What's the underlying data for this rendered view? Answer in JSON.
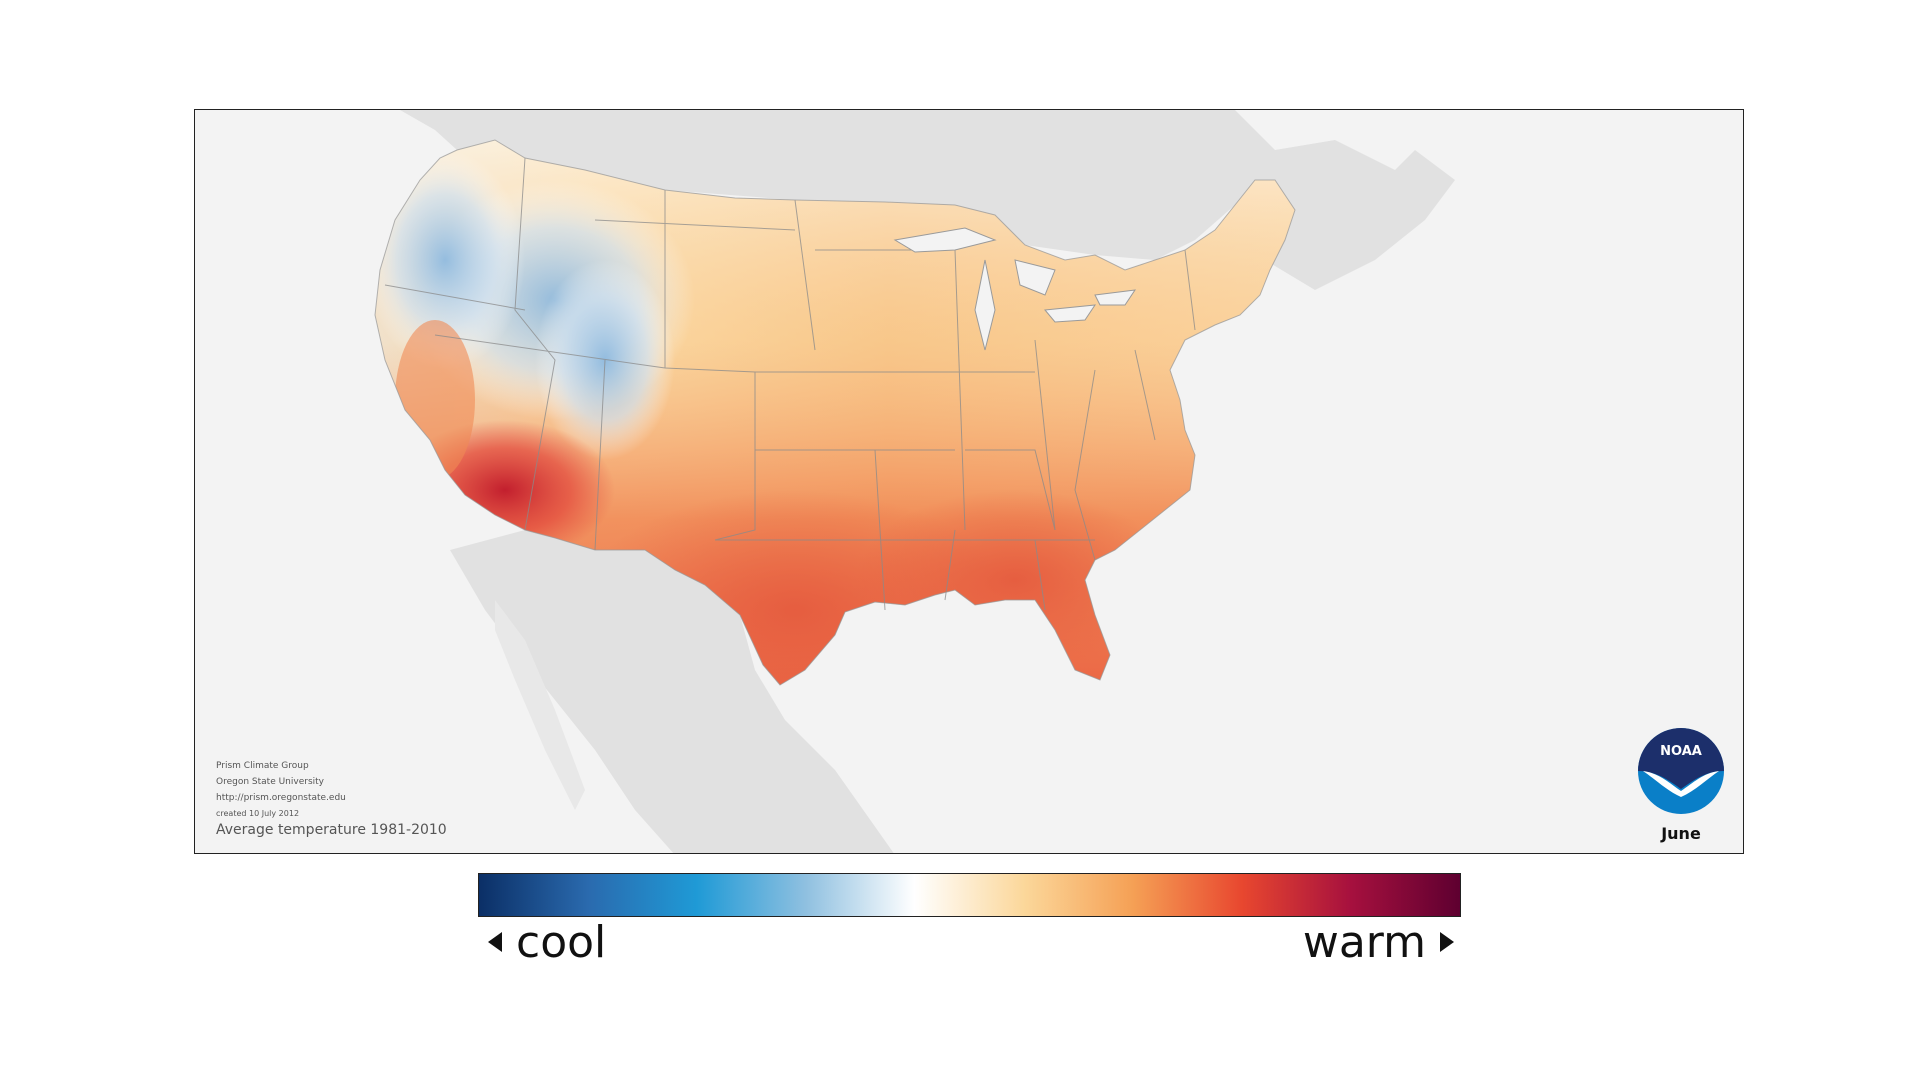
{
  "map": {
    "subtitle": "Average temperature 1981-2010",
    "month": "June",
    "credits": {
      "line1": "Prism Climate Group",
      "line2": "Oregon State University",
      "line3": "http://prism.oregonstate.edu",
      "line4": "created 10 July 2012"
    },
    "logo_text": "NOAA"
  },
  "legend": {
    "cool_label": "cool",
    "warm_label": "warm",
    "colors": [
      "#0b2f66",
      "#2a6aae",
      "#1f9ad6",
      "#8fc0e0",
      "#ffffff",
      "#fbd79a",
      "#f5a055",
      "#e8472f",
      "#a6103e",
      "#5e0030"
    ]
  },
  "palette": {
    "land_background": "#e0e0e0",
    "ocean": "#f3f3f3",
    "border": "#8a8a8a"
  }
}
